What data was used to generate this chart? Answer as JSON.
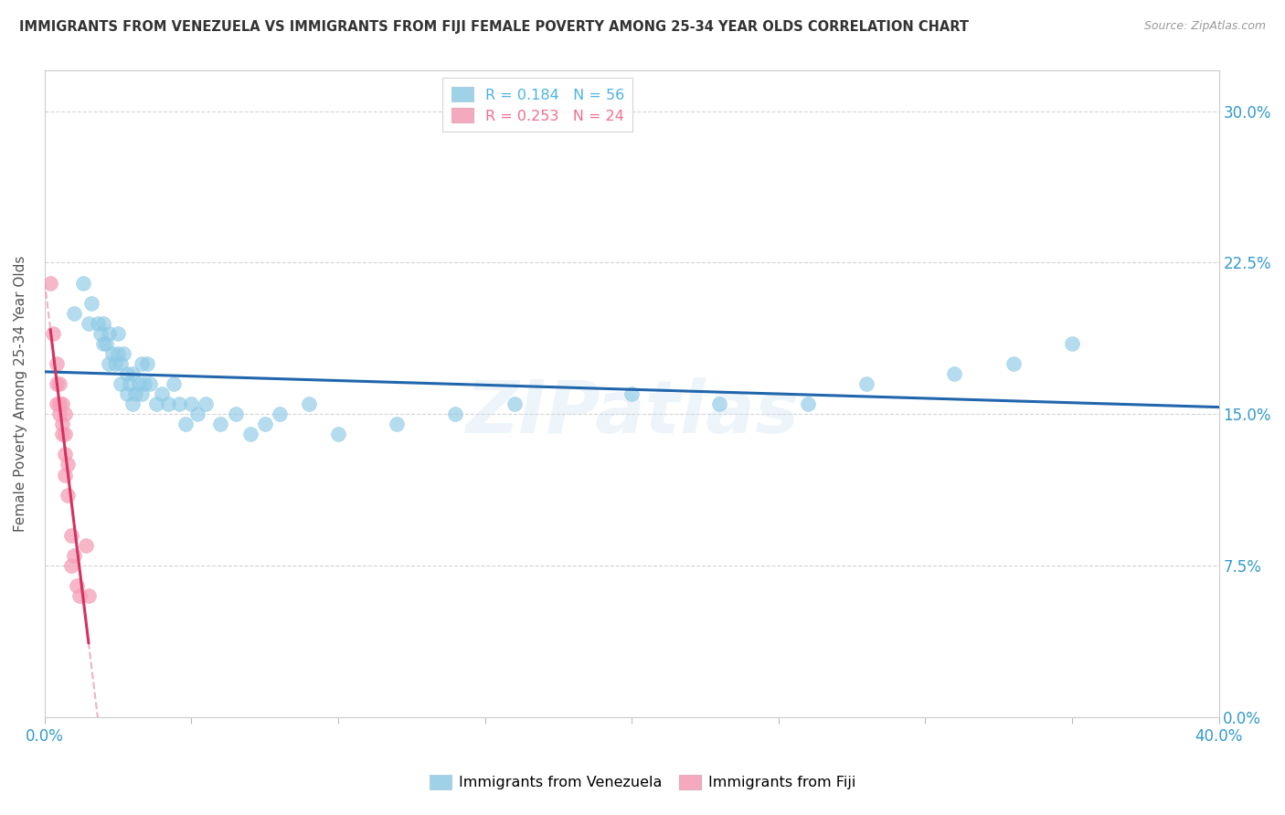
{
  "title": "IMMIGRANTS FROM VENEZUELA VS IMMIGRANTS FROM FIJI FEMALE POVERTY AMONG 25-34 YEAR OLDS CORRELATION CHART",
  "source": "Source: ZipAtlas.com",
  "ylabel": "Female Poverty Among 25-34 Year Olds",
  "xlim": [
    0.0,
    0.4
  ],
  "ylim": [
    0.0,
    0.32
  ],
  "legend_entries": [
    {
      "label": "R = 0.184   N = 56",
      "color": "#4db3e6"
    },
    {
      "label": "R = 0.253   N = 24",
      "color": "#f07090"
    }
  ],
  "venezuela_color": "#8ecae6",
  "fiji_color": "#f4a0b8",
  "venezuela_line_color": "#2166ac",
  "fiji_line_color": "#d63060",
  "fiji_dash_color": "#e8a0b8",
  "watermark": "ZIPatlas",
  "background_color": "#ffffff",
  "grid_color": "#d0d0d0",
  "venezuela_points": [
    [
      0.01,
      0.2
    ],
    [
      0.013,
      0.215
    ],
    [
      0.015,
      0.195
    ],
    [
      0.016,
      0.205
    ],
    [
      0.018,
      0.195
    ],
    [
      0.019,
      0.19
    ],
    [
      0.02,
      0.185
    ],
    [
      0.02,
      0.195
    ],
    [
      0.021,
      0.185
    ],
    [
      0.022,
      0.175
    ],
    [
      0.022,
      0.19
    ],
    [
      0.023,
      0.18
    ],
    [
      0.024,
      0.175
    ],
    [
      0.025,
      0.19
    ],
    [
      0.025,
      0.18
    ],
    [
      0.026,
      0.175
    ],
    [
      0.026,
      0.165
    ],
    [
      0.027,
      0.18
    ],
    [
      0.028,
      0.17
    ],
    [
      0.028,
      0.16
    ],
    [
      0.029,
      0.165
    ],
    [
      0.03,
      0.155
    ],
    [
      0.03,
      0.17
    ],
    [
      0.031,
      0.16
    ],
    [
      0.032,
      0.165
    ],
    [
      0.033,
      0.175
    ],
    [
      0.033,
      0.16
    ],
    [
      0.034,
      0.165
    ],
    [
      0.035,
      0.175
    ],
    [
      0.036,
      0.165
    ],
    [
      0.038,
      0.155
    ],
    [
      0.04,
      0.16
    ],
    [
      0.042,
      0.155
    ],
    [
      0.044,
      0.165
    ],
    [
      0.046,
      0.155
    ],
    [
      0.048,
      0.145
    ],
    [
      0.05,
      0.155
    ],
    [
      0.052,
      0.15
    ],
    [
      0.055,
      0.155
    ],
    [
      0.06,
      0.145
    ],
    [
      0.065,
      0.15
    ],
    [
      0.07,
      0.14
    ],
    [
      0.075,
      0.145
    ],
    [
      0.08,
      0.15
    ],
    [
      0.09,
      0.155
    ],
    [
      0.1,
      0.14
    ],
    [
      0.12,
      0.145
    ],
    [
      0.14,
      0.15
    ],
    [
      0.16,
      0.155
    ],
    [
      0.2,
      0.16
    ],
    [
      0.23,
      0.155
    ],
    [
      0.26,
      0.155
    ],
    [
      0.28,
      0.165
    ],
    [
      0.31,
      0.17
    ],
    [
      0.33,
      0.175
    ],
    [
      0.35,
      0.185
    ]
  ],
  "fiji_points": [
    [
      0.002,
      0.215
    ],
    [
      0.003,
      0.19
    ],
    [
      0.004,
      0.175
    ],
    [
      0.004,
      0.165
    ],
    [
      0.004,
      0.155
    ],
    [
      0.005,
      0.165
    ],
    [
      0.005,
      0.155
    ],
    [
      0.005,
      0.15
    ],
    [
      0.006,
      0.155
    ],
    [
      0.006,
      0.145
    ],
    [
      0.006,
      0.14
    ],
    [
      0.007,
      0.15
    ],
    [
      0.007,
      0.14
    ],
    [
      0.007,
      0.13
    ],
    [
      0.007,
      0.12
    ],
    [
      0.008,
      0.125
    ],
    [
      0.008,
      0.11
    ],
    [
      0.009,
      0.09
    ],
    [
      0.009,
      0.075
    ],
    [
      0.01,
      0.08
    ],
    [
      0.011,
      0.065
    ],
    [
      0.012,
      0.06
    ],
    [
      0.014,
      0.085
    ],
    [
      0.015,
      0.06
    ]
  ]
}
